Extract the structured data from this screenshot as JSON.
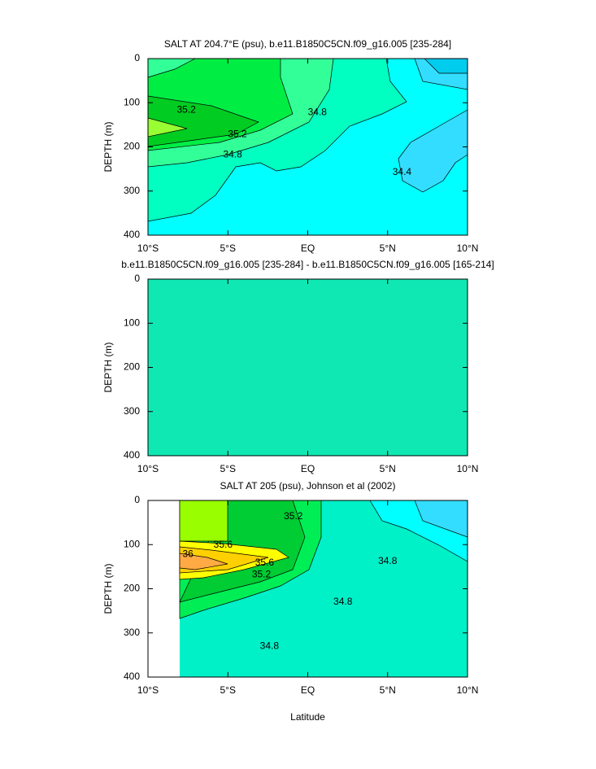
{
  "chart_data": [
    {
      "type": "contour",
      "title": "SALT AT 204.7°E (psu), b.e11.B1850C5CN.f09_g16.005 [235-284]",
      "ylabel": "DEPTH (m)",
      "background": "#00ffff",
      "xlim": [
        -10,
        10
      ],
      "xticks": [
        {
          "value": -10,
          "label": "10°S"
        },
        {
          "value": -5,
          "label": "5°S"
        },
        {
          "value": 0,
          "label": "EQ"
        },
        {
          "value": 5,
          "label": "5°N"
        },
        {
          "value": 10,
          "label": "10°N"
        }
      ],
      "ylim": [
        400,
        0
      ],
      "yticks": [
        0,
        100,
        200,
        300,
        400
      ],
      "contour_labels": [
        {
          "value": 35.2,
          "x": -7.6,
          "y": 117
        },
        {
          "value": 35.2,
          "x": -4.4,
          "y": 172
        },
        {
          "value": 34.8,
          "x": -4.7,
          "y": 218
        },
        {
          "value": 34.8,
          "x": 0.6,
          "y": 122
        },
        {
          "value": 34.4,
          "x": 5.9,
          "y": 258
        }
      ]
    },
    {
      "type": "contour",
      "title": "b.e11.B1850C5CN.f09_g16.005 [235-284] - b.e11.B1850C5CN.f09_g16.005 [165-214]",
      "ylabel": "DEPTH (m)",
      "background": "#10e8b4",
      "xlim": [
        -10,
        10
      ],
      "xticks": [
        {
          "value": -10,
          "label": "10°S"
        },
        {
          "value": -5,
          "label": "5°S"
        },
        {
          "value": 0,
          "label": "EQ"
        },
        {
          "value": 5,
          "label": "5°N"
        },
        {
          "value": 10,
          "label": "10°N"
        }
      ],
      "ylim": [
        400,
        0
      ],
      "yticks": [
        0,
        100,
        200,
        300,
        400
      ],
      "contour_labels": []
    },
    {
      "type": "contour",
      "title": "SALT AT 205 (psu), Johnson et al (2002)",
      "ylabel": "DEPTH (m)",
      "xlabel": "Latitude",
      "background": "#00f0c8",
      "xlim": [
        -10,
        10
      ],
      "xticks": [
        {
          "value": -10,
          "label": "10°S"
        },
        {
          "value": -5,
          "label": "5°S"
        },
        {
          "value": 0,
          "label": "EQ"
        },
        {
          "value": 5,
          "label": "5°N"
        },
        {
          "value": 10,
          "label": "10°N"
        }
      ],
      "ylim": [
        400,
        0
      ],
      "yticks": [
        0,
        100,
        200,
        300,
        400
      ],
      "contour_labels": [
        {
          "value": 35.2,
          "x": -0.9,
          "y": 37
        },
        {
          "value": 35.6,
          "x": -5.3,
          "y": 101
        },
        {
          "value": 36,
          "x": -7.5,
          "y": 122
        },
        {
          "value": 35.6,
          "x": -2.7,
          "y": 142
        },
        {
          "value": 35.2,
          "x": -2.9,
          "y": 168
        },
        {
          "value": 34.8,
          "x": 5,
          "y": 138
        },
        {
          "value": 34.8,
          "x": 2.2,
          "y": 230
        },
        {
          "value": 34.8,
          "x": -2.4,
          "y": 331
        }
      ]
    }
  ]
}
